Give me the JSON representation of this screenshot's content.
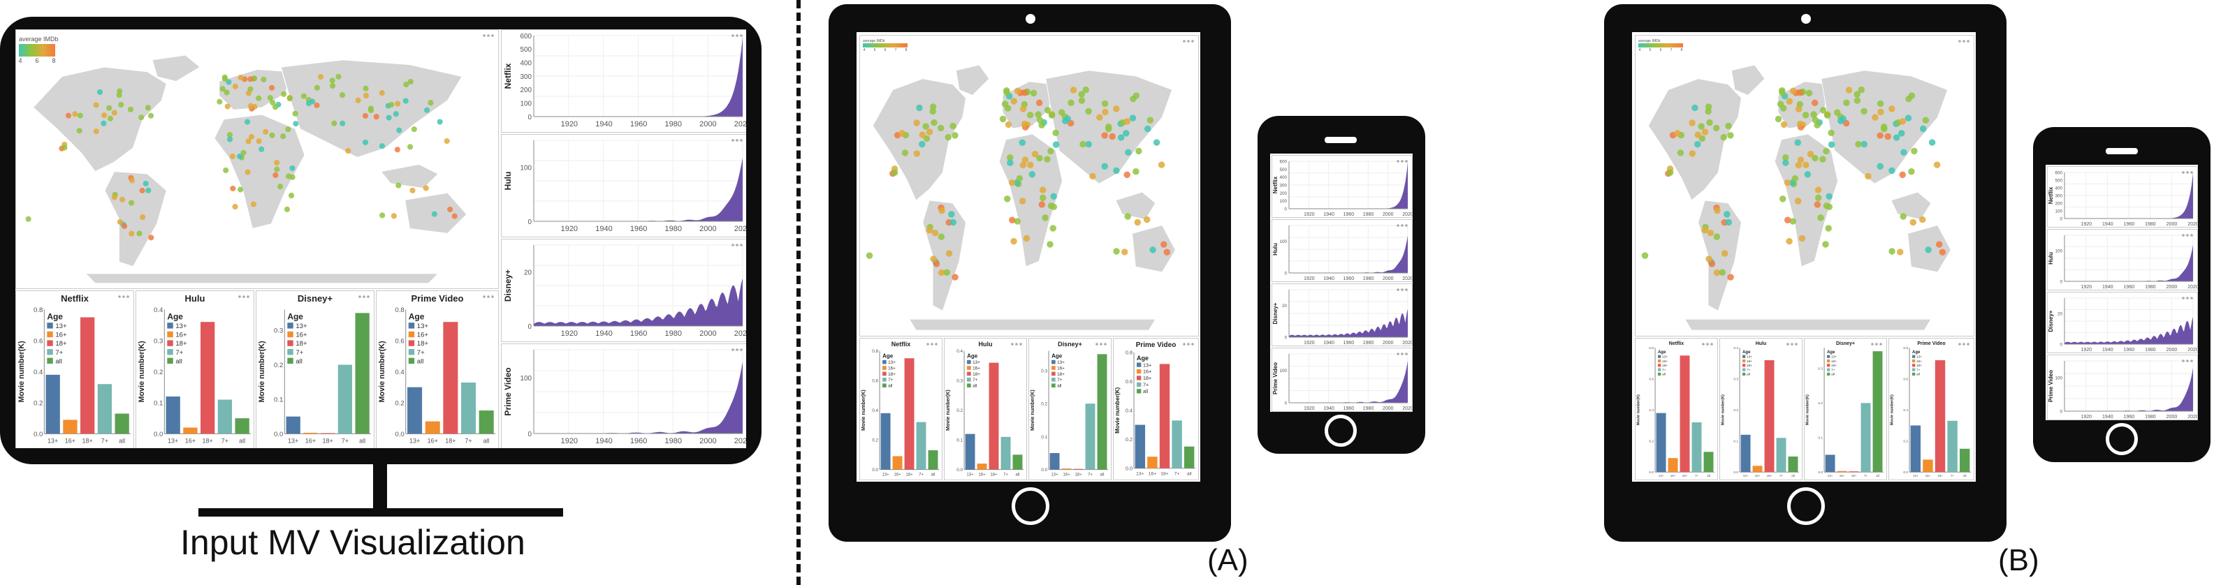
{
  "captions": {
    "input": "Input MV Visualization",
    "a": "(A)",
    "b": "(B)"
  },
  "colors": {
    "land": "#d4d4d4",
    "area": "#6b52a8",
    "bars": [
      "#4e79a7",
      "#f28e2b",
      "#e15759",
      "#76b7b2",
      "#59a14f"
    ],
    "gradient": [
      "#3fc6b3",
      "#8fc33f",
      "#e0a93a",
      "#f07b3f"
    ]
  },
  "map": {
    "legend_title": "average IMDb",
    "legend_ticks": [
      "4",
      "6",
      "8"
    ],
    "legend_ticks_small": [
      "4",
      "5",
      "6",
      "7",
      "8"
    ]
  },
  "icons": [
    "more-dots-icon",
    "home-button-icon",
    "speaker-slot-icon",
    "camera-icon"
  ],
  "chart_data": [
    {
      "type": "area",
      "x_ticks": [
        "1920",
        "1940",
        "1960",
        "1980",
        "2000",
        "2020"
      ],
      "series": [
        {
          "name": "Netflix",
          "y_ticks": [
            "0",
            "100",
            "200",
            "300",
            "400",
            "500",
            "600"
          ],
          "ylim": [
            0,
            600
          ]
        },
        {
          "name": "Hulu",
          "y_ticks": [
            "0",
            "100"
          ],
          "ylim": [
            0,
            150
          ]
        },
        {
          "name": "Disney+",
          "y_ticks": [
            "0",
            "20"
          ],
          "ylim": [
            0,
            30
          ]
        },
        {
          "name": "Prime Video",
          "y_ticks": [
            "0",
            "100"
          ],
          "ylim": [
            0,
            150
          ]
        }
      ]
    },
    {
      "type": "bar",
      "ylabel": "Movie number(K)",
      "legend_title": "Age",
      "categories": [
        "13+",
        "16+",
        "18+",
        "7+",
        "all"
      ],
      "tick_labels": [
        "13+",
        "16+",
        "18+",
        "7+",
        "all"
      ],
      "charts": [
        {
          "title": "Netflix",
          "values": [
            0.38,
            0.09,
            0.75,
            0.32,
            0.13
          ],
          "ylim": [
            0,
            0.8
          ],
          "y_ticks": [
            "0.0",
            "0.2",
            "0.4",
            "0.6",
            "0.8"
          ]
        },
        {
          "title": "Hulu",
          "values": [
            0.12,
            0.02,
            0.36,
            0.11,
            0.05
          ],
          "ylim": [
            0,
            0.4
          ],
          "y_ticks": [
            "0.0",
            "0.1",
            "0.2",
            "0.3",
            "0.4"
          ]
        },
        {
          "title": "Disney+",
          "values": [
            0.05,
            0.003,
            0.002,
            0.2,
            0.35
          ],
          "ylim": [
            0,
            0.36
          ],
          "y_ticks": [
            "0.0",
            "0.1",
            "0.2",
            "0.3"
          ]
        },
        {
          "title": "Prime Video",
          "values": [
            0.3,
            0.08,
            0.72,
            0.33,
            0.15
          ],
          "ylim": [
            0,
            0.8
          ],
          "y_ticks": [
            "0.0",
            "0.2",
            "0.4",
            "0.6",
            "0.8"
          ]
        }
      ]
    }
  ]
}
